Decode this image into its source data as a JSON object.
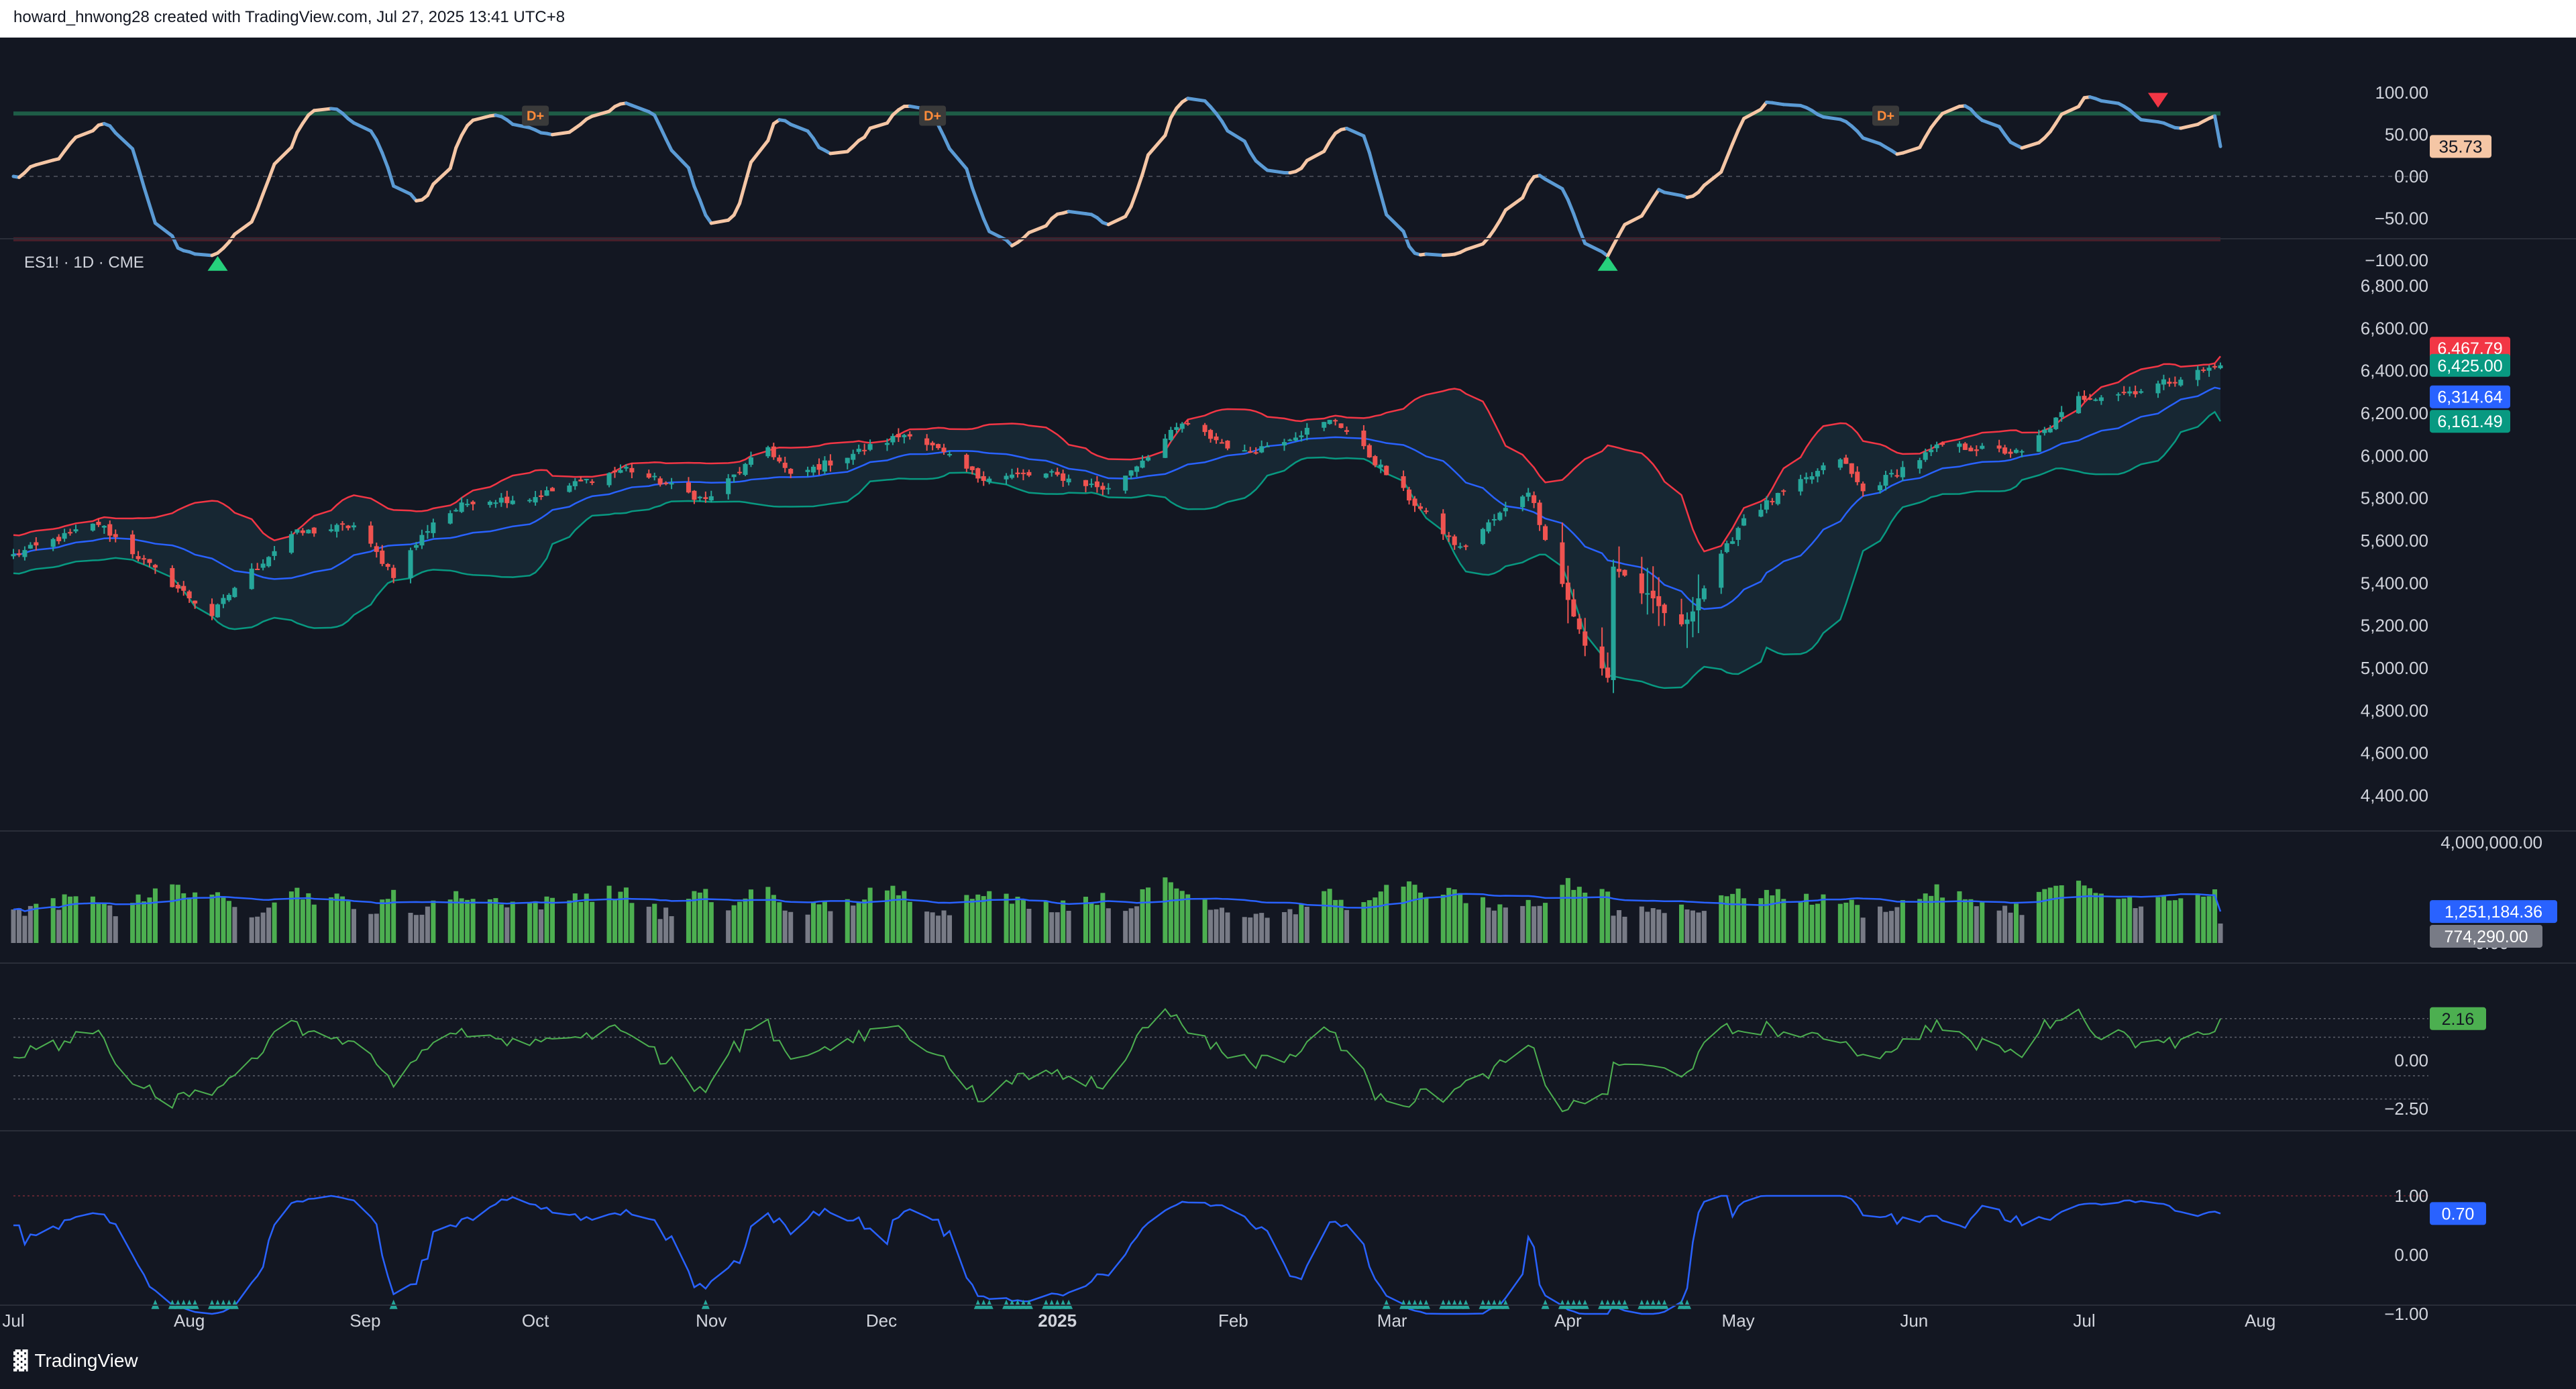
{
  "header": {
    "text": "howard_hnwong28 created with TradingView.com, Jul 27, 2025 13:41 UTC+8"
  },
  "brand": {
    "logo_icon": "tradingview-logo-icon",
    "name": "TradingView"
  },
  "colors": {
    "bg": "#131722",
    "up": "#26a69a",
    "down": "#ef5350",
    "basis": "#2962ff",
    "bb_upper": "#f23645",
    "bb_lower": "#089981",
    "vol_up": "#4caf50",
    "vol_neutral": "#787b86",
    "osc_line": "#4caf50",
    "blue_line": "#2962ff",
    "wave_up": "#f5c6a5",
    "wave_down": "#5b9bd5"
  },
  "osc_panel": {
    "ticks": [
      "100.00",
      "50.00",
      "0.00",
      "−50.00",
      "−100.00"
    ],
    "last_value": "35.73",
    "div_label": "D+",
    "buy_signal_icon": "triangle-up-icon",
    "sell_signal_icon": "triangle-down-icon"
  },
  "price_panel": {
    "symbol": "ES1! · 1D · CME",
    "ticks": [
      "6,800.00",
      "6,600.00",
      "6,400.00",
      "6,200.00",
      "6,000.00",
      "5,800.00",
      "5,600.00",
      "5,400.00",
      "5,200.00",
      "5,000.00",
      "4,800.00",
      "4,600.00",
      "4,400.00"
    ],
    "labels": {
      "upper": "6,467.79",
      "last": "6,425.00",
      "basis": "6,314.64",
      "lower": "6,161.49"
    }
  },
  "volume_panel": {
    "ticks": [
      "4,000,000.00",
      "0.00"
    ],
    "labels": {
      "ma": "1,251,184.36",
      "last": "774,290.00"
    }
  },
  "osc2_panel": {
    "ticks": [
      "0.00",
      "−2.50"
    ],
    "last": "2.16"
  },
  "corr_panel": {
    "ticks": [
      "1.00",
      "0.00",
      "−1.00"
    ],
    "last": "0.70"
  },
  "x_axis": [
    "Jul",
    "Aug",
    "Sep",
    "Oct",
    "Nov",
    "Dec",
    "2025",
    "Feb",
    "Mar",
    "Apr",
    "May",
    "Jun",
    "Jul",
    "Aug"
  ],
  "chart_data": {
    "type": "candlestick",
    "symbol": "ES1!",
    "interval": "1D",
    "exchange": "CME",
    "x_range": [
      "2024-07-01",
      "2025-07-25"
    ],
    "ylim": [
      4400,
      6850
    ],
    "price_anchors": [
      [
        "2024-07-01",
        5530
      ],
      [
        "2024-07-16",
        5680
      ],
      [
        "2024-07-25",
        5480
      ],
      [
        "2024-08-05",
        5250
      ],
      [
        "2024-08-09",
        5380
      ],
      [
        "2024-08-19",
        5630
      ],
      [
        "2024-08-30",
        5670
      ],
      [
        "2024-09-06",
        5440
      ],
      [
        "2024-09-13",
        5690
      ],
      [
        "2024-09-20",
        5790
      ],
      [
        "2024-09-30",
        5800
      ],
      [
        "2024-10-17",
        5940
      ],
      [
        "2024-10-31",
        5790
      ],
      [
        "2024-11-11",
        6040
      ],
      [
        "2024-11-15",
        5900
      ],
      [
        "2024-12-06",
        6110
      ],
      [
        "2024-12-18",
        5900
      ],
      [
        "2024-12-31",
        5910
      ],
      [
        "2025-01-10",
        5840
      ],
      [
        "2025-01-23",
        6150
      ],
      [
        "2025-02-03",
        6010
      ],
      [
        "2025-02-19",
        6170
      ],
      [
        "2025-03-04",
        5800
      ],
      [
        "2025-03-13",
        5560
      ],
      [
        "2025-03-25",
        5840
      ],
      [
        "2025-04-04",
        5100
      ],
      [
        "2025-04-08",
        4960
      ],
      [
        "2025-04-09",
        5480
      ],
      [
        "2025-04-21",
        5190
      ],
      [
        "2025-05-02",
        5710
      ],
      [
        "2025-05-12",
        5870
      ],
      [
        "2025-05-19",
        5990
      ],
      [
        "2025-05-23",
        5830
      ],
      [
        "2025-06-06",
        6050
      ],
      [
        "2025-06-20",
        6010
      ],
      [
        "2025-06-30",
        6270
      ],
      [
        "2025-07-11",
        6310
      ],
      [
        "2025-07-25",
        6425
      ]
    ],
    "last_close": 6425.0,
    "bollinger": {
      "upper": 6467.79,
      "basis": 6314.64,
      "lower": 6161.49
    },
    "volume": {
      "ma": 1251184.36,
      "last": 774290.0,
      "ylim": [
        0,
        4000000
      ]
    },
    "oscillator_1": {
      "last": 35.73,
      "ylim": [
        -100,
        100
      ],
      "buy_signals": [
        "2024-08-06",
        "2025-04-08"
      ],
      "sell_signals": [
        "2025-07-14"
      ],
      "divergence_labels": [
        "2024-10-01",
        "2024-12-10",
        "2025-05-27"
      ]
    },
    "oscillator_2": {
      "last": 2.16,
      "ylim": [
        -3.2,
        3.2
      ]
    },
    "oscillator_3": {
      "last": 0.7,
      "ylim": [
        -1.1,
        1.0
      ]
    }
  }
}
